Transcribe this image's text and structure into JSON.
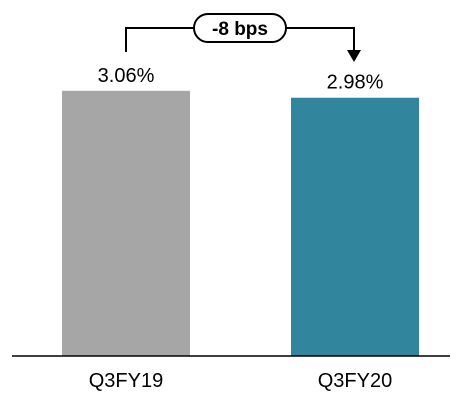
{
  "chart_data": {
    "type": "bar",
    "categories": [
      "Q3FY19",
      "Q3FY20"
    ],
    "values": [
      3.06,
      2.98
    ],
    "data_labels": [
      "3.06%",
      "2.98%"
    ],
    "colors": [
      "#a6a6a6",
      "#31859c"
    ],
    "title": "",
    "xlabel": "",
    "ylabel": "",
    "ylim": [
      0,
      3.3
    ],
    "grid": false,
    "legend": "none",
    "annotation": {
      "text": "-8 bps",
      "from_category": "Q3FY19",
      "to_category": "Q3FY20"
    }
  }
}
